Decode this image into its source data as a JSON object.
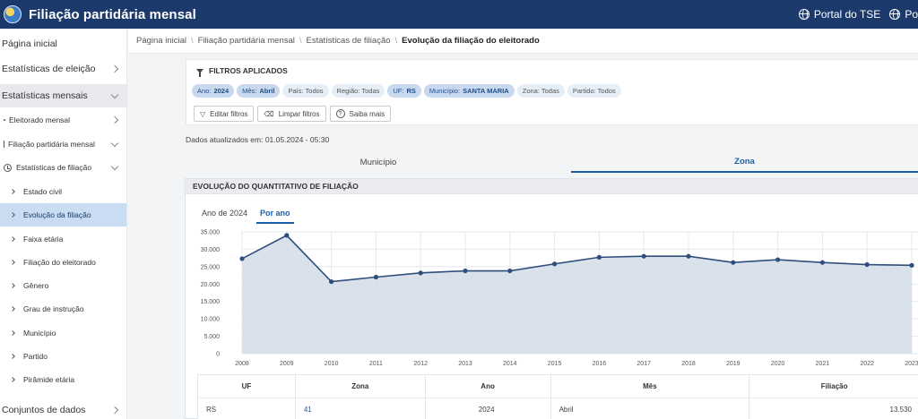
{
  "header": {
    "title": "Filiação partidária mensal",
    "links": [
      "Portal do TSE",
      "Po"
    ]
  },
  "sidebar": {
    "items": [
      {
        "label": "Página inicial"
      },
      {
        "label": "Estatísticas de eleição"
      },
      {
        "label": "Estatísticas mensais"
      },
      {
        "label": "Eleitorado mensal"
      },
      {
        "label": "Filiação partidária mensal"
      },
      {
        "label": "Estatísticas de filiação"
      },
      {
        "label": "Estado civil"
      },
      {
        "label": "Evolução da filiação"
      },
      {
        "label": "Faixa etária"
      },
      {
        "label": "Filiação do eleitorado"
      },
      {
        "label": "Gênero"
      },
      {
        "label": "Grau de instrução"
      },
      {
        "label": "Município"
      },
      {
        "label": "Partido"
      },
      {
        "label": "Pirâmide etária"
      },
      {
        "label": "Conjuntos de dados"
      }
    ]
  },
  "breadcrumb": [
    "Página inicial",
    "Filiação partidária mensal",
    "Estatísticas de filiação",
    "Evolução da filiação do eleitorado"
  ],
  "filters": {
    "title": "FILTROS APLICADOS",
    "chips": [
      {
        "label": "Ano:",
        "value": "2024",
        "active": true
      },
      {
        "label": "Mês:",
        "value": "Abril",
        "active": true
      },
      {
        "label": "País: Todos",
        "value": "",
        "active": false
      },
      {
        "label": "Região: Todas",
        "value": "",
        "active": false
      },
      {
        "label": "UF:",
        "value": "RS",
        "active": true
      },
      {
        "label": "Município:",
        "value": "SANTA MARIA",
        "active": true
      },
      {
        "label": "Zona: Todas",
        "value": "",
        "active": false
      },
      {
        "label": "Partido: Todos",
        "value": "",
        "active": false
      }
    ],
    "buttons": {
      "edit": "Editar filtros",
      "clear": "Limpar filtros",
      "more": "Saiba mais"
    }
  },
  "updated": "Dados atualizados em: 01.05.2024 - 05:30",
  "tabs": {
    "municipio": "Município",
    "zona": "Zona"
  },
  "card": {
    "title": "EVOLUÇÃO DO QUANTITATIVO DE FILIAÇÃO",
    "subtabs": {
      "ano": "Ano de 2024",
      "por_ano": "Por ano"
    }
  },
  "chart_data": {
    "type": "area",
    "x": [
      "2008",
      "2009",
      "2010",
      "2011",
      "2012",
      "2013",
      "2014",
      "2015",
      "2016",
      "2017",
      "2018",
      "2019",
      "2020",
      "2021",
      "2022",
      "2023"
    ],
    "y": [
      27300,
      34000,
      20700,
      22000,
      23200,
      23800,
      23800,
      25800,
      27700,
      28000,
      28000,
      26200,
      27000,
      26200,
      25600,
      25400
    ],
    "yticks": [
      "0",
      "5.000",
      "10.000",
      "15.000",
      "20.000",
      "25.000",
      "30.000",
      "35.000"
    ],
    "ylim": [
      0,
      35000
    ],
    "grid": true,
    "colors": {
      "line": "#2e4f7c",
      "fill": "#d5dee9"
    }
  },
  "table": {
    "headers": [
      "UF",
      "Zona",
      "Ano",
      "Mês",
      "Filiação"
    ],
    "rows": [
      [
        "RS",
        "41",
        "2024",
        "Abril",
        "13.530"
      ]
    ]
  }
}
